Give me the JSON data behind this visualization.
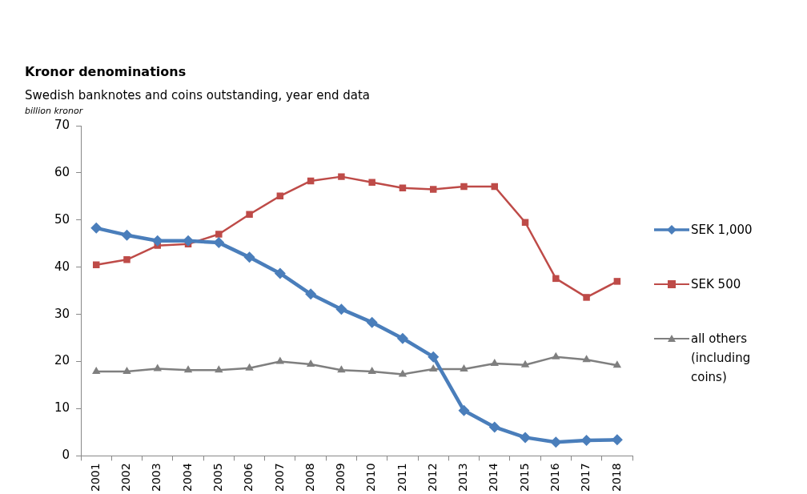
{
  "chart_data": {
    "type": "line",
    "title": "Kronor denominations",
    "subtitle": "Swedish banknotes and coins outstanding, year end data",
    "ylabel": "billion kronor",
    "categories": [
      "2001",
      "2002",
      "2003",
      "2004",
      "2005",
      "2006",
      "2007",
      "2008",
      "2009",
      "2010",
      "2011",
      "2012",
      "2013",
      "2014",
      "2015",
      "2016",
      "2017",
      "2018"
    ],
    "series": [
      {
        "name": "SEK 1,000",
        "color": "#4a7ebb",
        "marker": "diamond",
        "values": [
          48.3,
          46.8,
          45.6,
          45.6,
          45.2,
          42.1,
          38.7,
          34.3,
          31.1,
          28.3,
          24.9,
          21.0,
          9.6,
          6.1,
          3.9,
          2.9,
          3.3,
          3.4
        ]
      },
      {
        "name": "SEK 500",
        "color": "#be4b48",
        "marker": "square",
        "values": [
          40.5,
          41.6,
          44.6,
          44.9,
          47.0,
          51.2,
          55.1,
          58.3,
          59.2,
          58.0,
          56.8,
          56.5,
          57.1,
          57.1,
          49.5,
          37.6,
          33.6,
          37.0
        ]
      },
      {
        "name": "all others (including coins)",
        "color": "#7f7f7f",
        "marker": "triangle",
        "values": [
          17.9,
          17.9,
          18.5,
          18.2,
          18.2,
          18.6,
          20.0,
          19.4,
          18.2,
          17.9,
          17.3,
          18.4,
          18.4,
          19.6,
          19.3,
          21.0,
          20.4,
          19.2
        ]
      }
    ],
    "ylim": [
      0,
      70
    ],
    "yticks": [
      0,
      10,
      20,
      30,
      40,
      50,
      60,
      70
    ],
    "grid": false,
    "legend": "right"
  }
}
